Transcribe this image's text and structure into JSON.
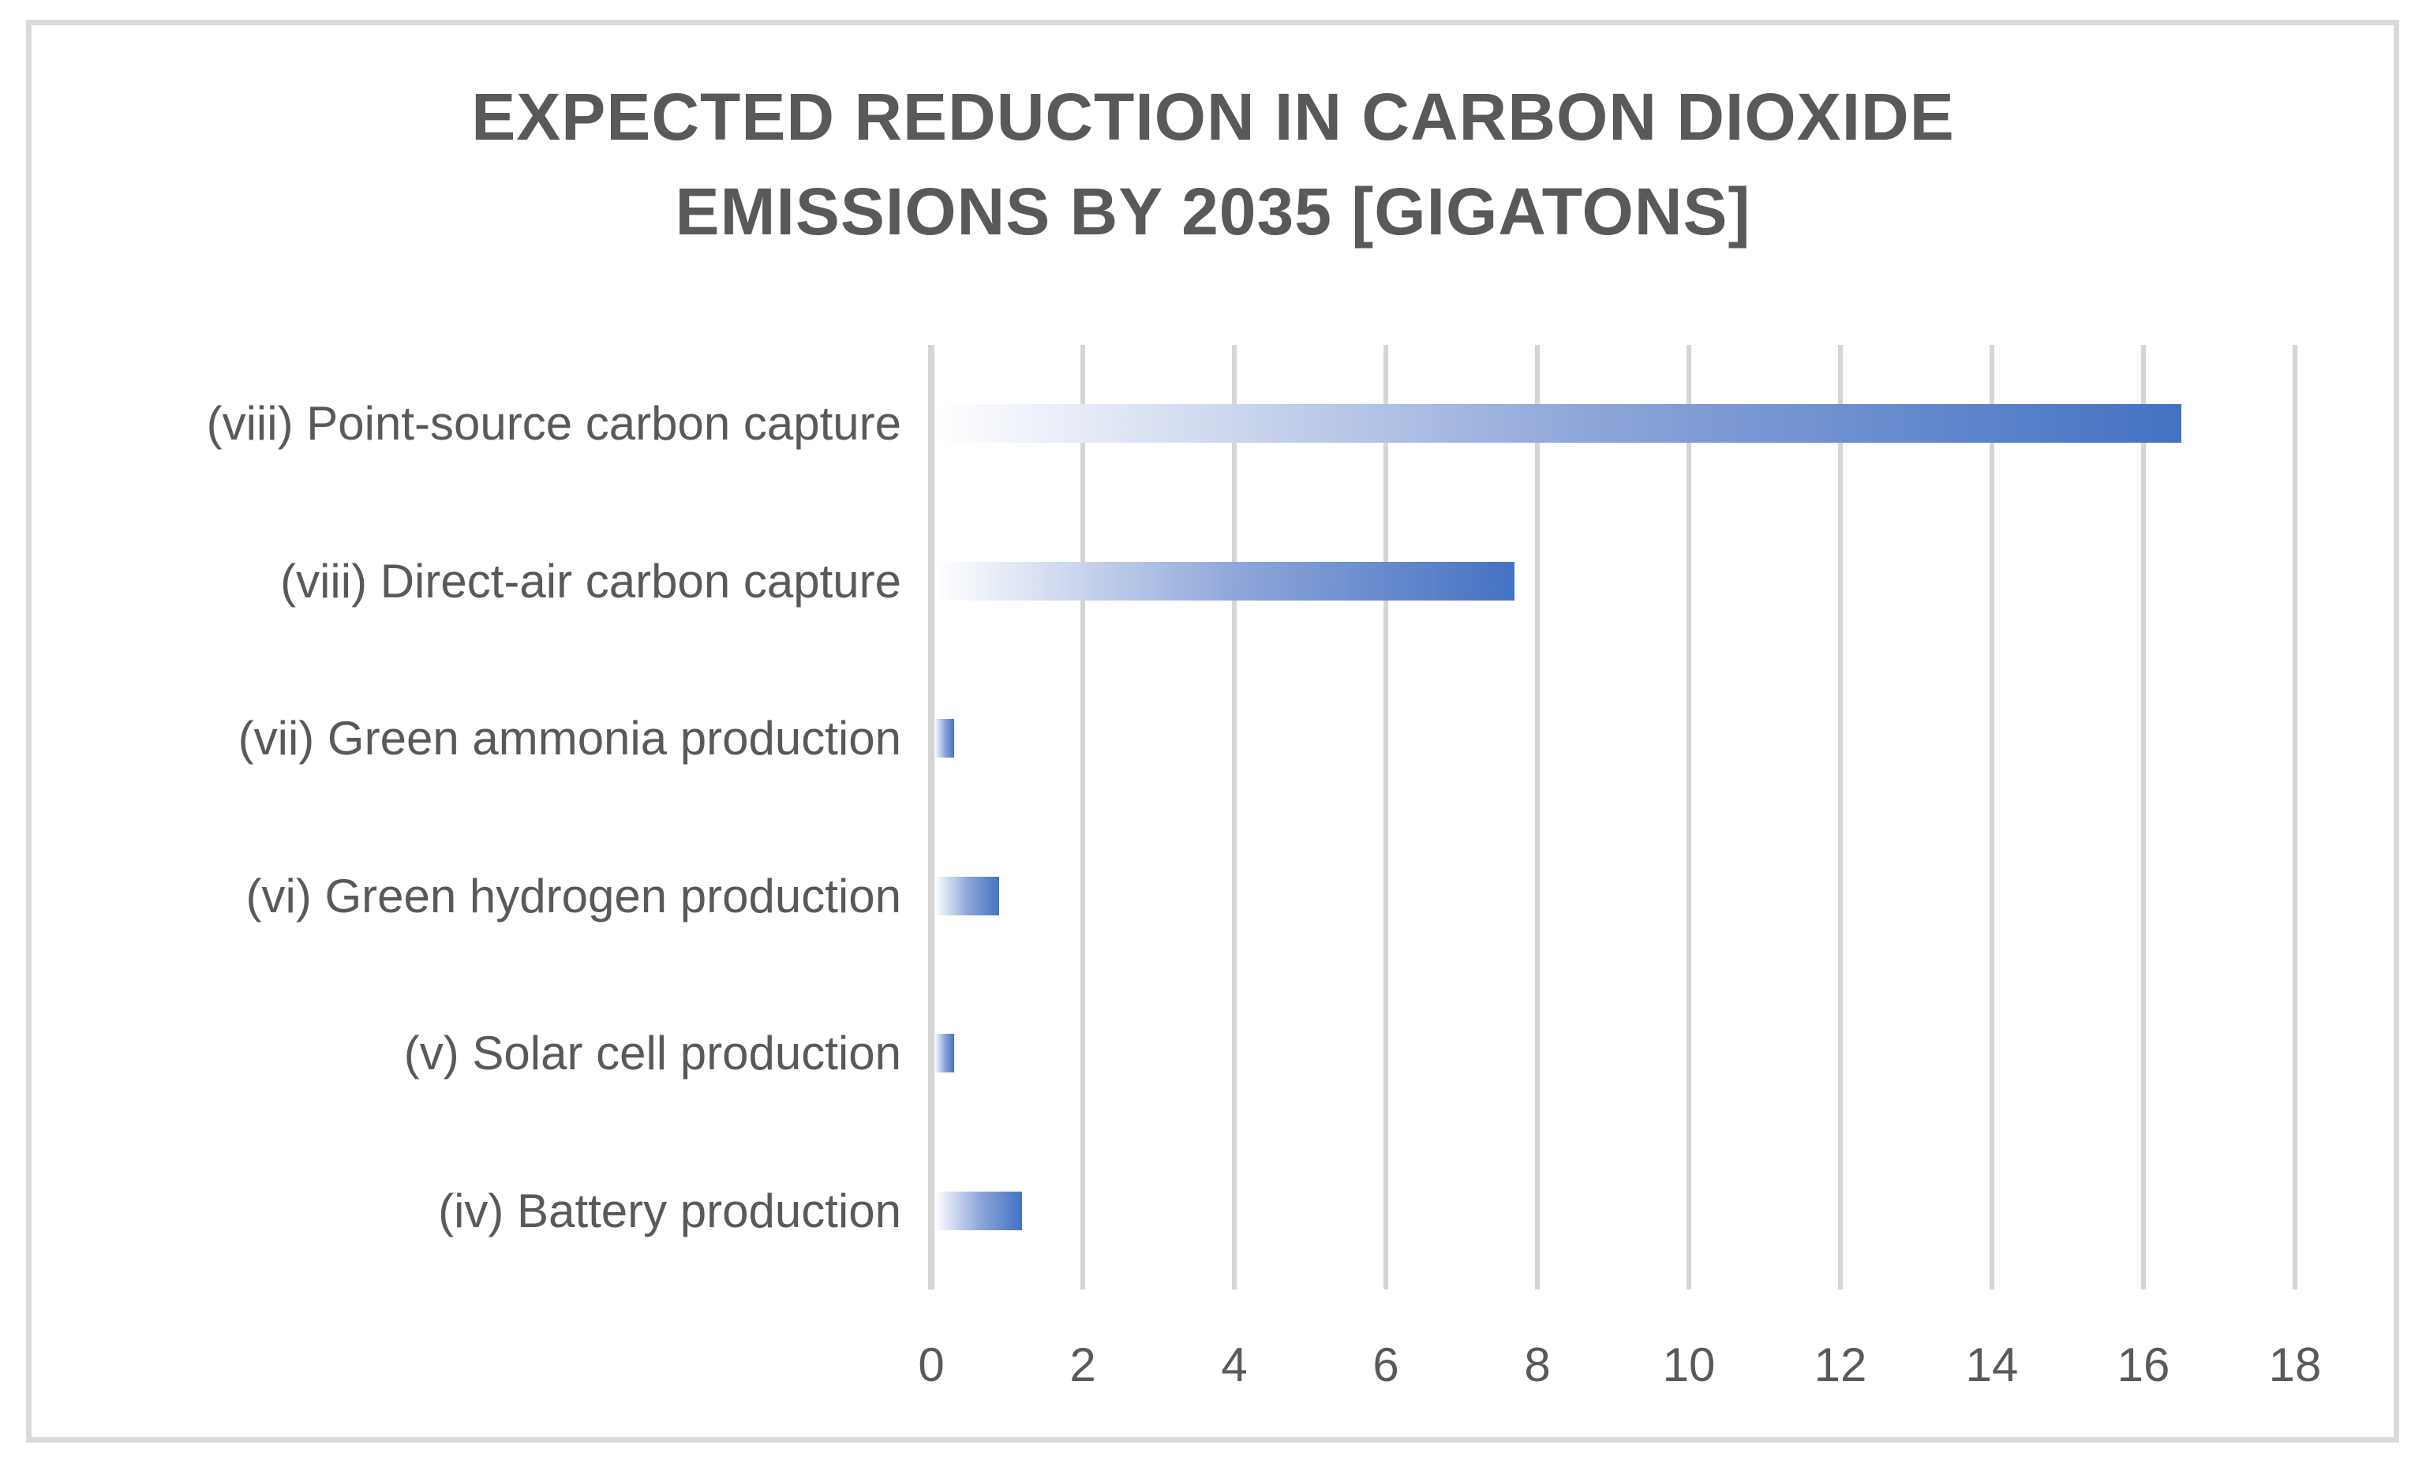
{
  "chart_data": {
    "type": "bar",
    "orientation": "horizontal",
    "title_lines": [
      "EXPECTED REDUCTION IN CARBON DIOXIDE",
      "EMISSIONS BY 2035 [GIGATONS]"
    ],
    "title": "EXPECTED REDUCTION IN CARBON DIOXIDE EMISSIONS BY 2035 [GIGATONS]",
    "categories": [
      "(viii) Point-source carbon capture",
      "(viii) Direct-air carbon capture",
      "(vii) Green ammonia production",
      "(vi) Green hydrogen production",
      "(v) Solar cell production",
      "(iv) Battery production"
    ],
    "values": [
      16.5,
      7.7,
      0.3,
      0.9,
      0.3,
      1.2
    ],
    "xlabel": "",
    "ylabel": "",
    "xlim": [
      0,
      18
    ],
    "x_ticks": [
      0,
      2,
      4,
      6,
      8,
      10,
      12,
      14,
      16,
      18
    ],
    "grid": true,
    "legend": false,
    "colors": {
      "bar_gradient_start": "#ffffff",
      "bar_gradient_mid": "#8fa6d9",
      "bar_gradient_end": "#4472c4",
      "gridline": "#d5d5d5",
      "frame_border": "#dadada",
      "text": "#595959",
      "background": "#ffffff"
    }
  }
}
